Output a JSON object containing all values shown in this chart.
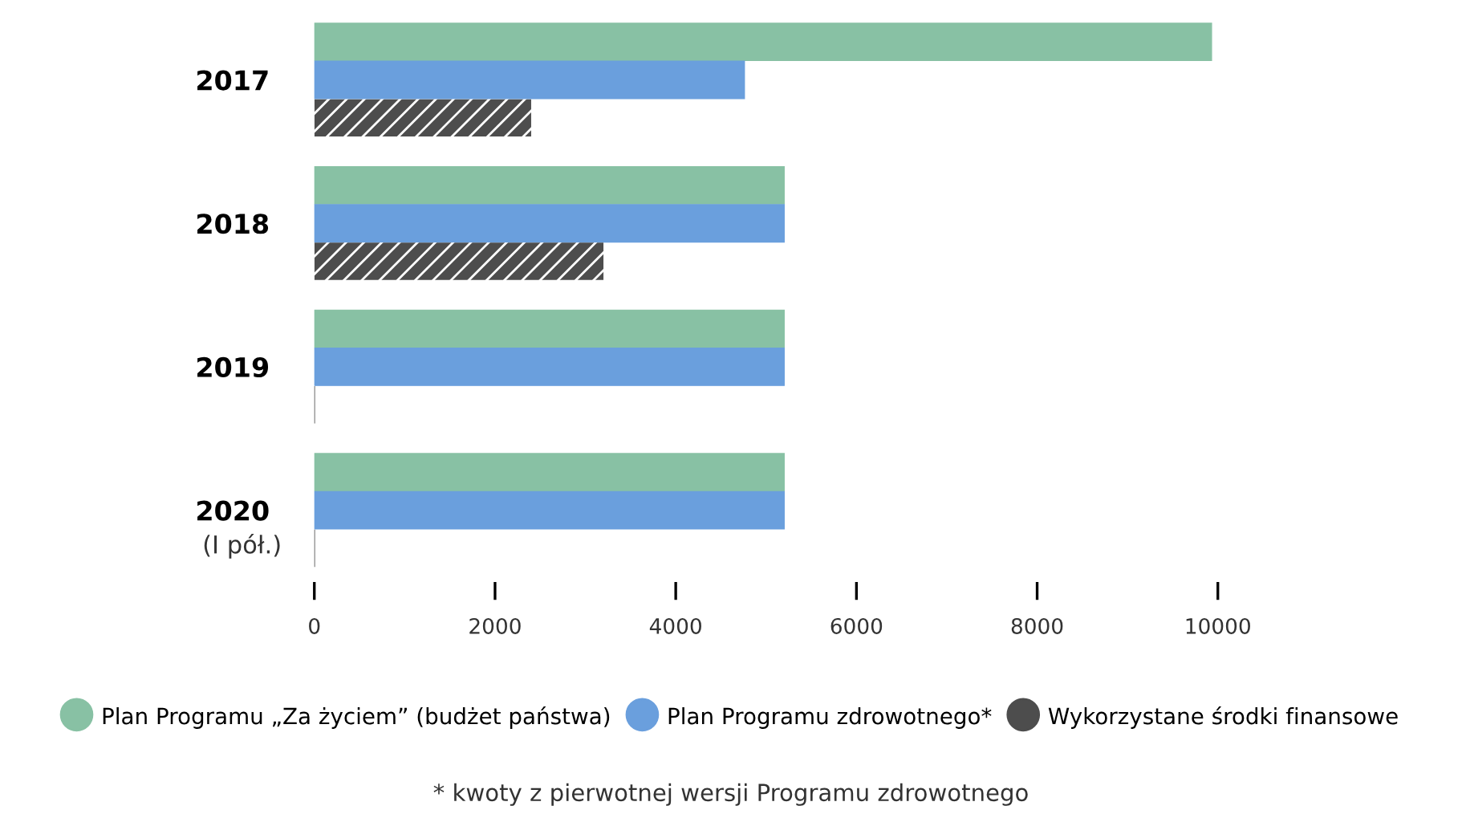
{
  "chart_data": {
    "type": "bar",
    "orientation": "horizontal",
    "categories": [
      "2017",
      "2018",
      "2019",
      "2020 (I pół.)"
    ],
    "series": [
      {
        "name": "Plan Programu „Za życiem” (budżet państwa)",
        "color": "#88c1a4",
        "values": [
          9930,
          5200,
          5200,
          5200
        ]
      },
      {
        "name": "Plan Programu zdrowotnego*",
        "color": "#6a9fdd",
        "values": [
          4760,
          5200,
          5200,
          5200
        ]
      },
      {
        "name": "Wykorzystane środki finansowe",
        "color": "#4d4d4d",
        "values": [
          2400,
          3200,
          0,
          0
        ]
      }
    ],
    "xlim": [
      0,
      10000
    ],
    "xticks": [
      0,
      2000,
      4000,
      6000,
      8000,
      10000
    ],
    "grid": false,
    "legend": "bottom",
    "annotations": [
      "* kwoty z pierwotnej wersji Programu zdrowotnego"
    ]
  }
}
